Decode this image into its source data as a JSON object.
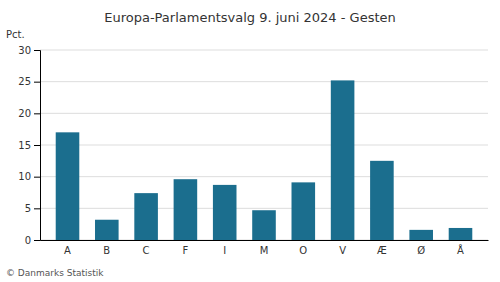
{
  "chart_data": {
    "type": "bar",
    "title": "Europa-Parlamentsvalg 9. juni 2024 - Gesten",
    "categories": [
      "A",
      "B",
      "C",
      "F",
      "I",
      "M",
      "O",
      "V",
      "Æ",
      "Ø",
      "Å"
    ],
    "values": [
      17.0,
      3.2,
      7.4,
      9.6,
      8.7,
      4.7,
      9.1,
      25.2,
      12.5,
      1.6,
      1.9
    ],
    "color": "#1b6e8e",
    "ylim": [
      0,
      30
    ],
    "yticks": [
      0,
      5,
      10,
      15,
      20,
      25,
      30
    ],
    "grid": true,
    "ylabel": "Pct.",
    "footer": "© Danmarks Statistik"
  }
}
